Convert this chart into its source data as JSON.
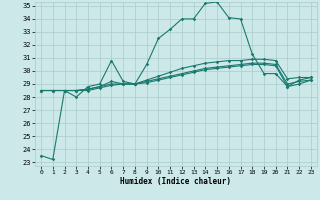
{
  "xlabel": "Humidex (Indice chaleur)",
  "background_color": "#cce8e8",
  "grid_color": "#aacccc",
  "line_color": "#1a7a6e",
  "x_min": 0,
  "x_max": 23,
  "y_min": 23,
  "y_max": 35,
  "x_ticks": [
    0,
    1,
    2,
    3,
    4,
    5,
    6,
    7,
    8,
    9,
    10,
    11,
    12,
    13,
    14,
    15,
    16,
    17,
    18,
    19,
    20,
    21,
    22,
    23
  ],
  "y_ticks": [
    23,
    24,
    25,
    26,
    27,
    28,
    29,
    30,
    31,
    32,
    33,
    34,
    35
  ],
  "line1": [
    23.5,
    23.2,
    28.5,
    28.0,
    28.8,
    29.0,
    30.8,
    29.2,
    29.0,
    30.5,
    32.5,
    33.2,
    34.0,
    34.0,
    35.2,
    35.3,
    34.1,
    34.0,
    31.3,
    29.8,
    29.8,
    28.8,
    29.3,
    29.5
  ],
  "line2": [
    28.5,
    28.5,
    28.5,
    28.5,
    28.6,
    28.8,
    29.2,
    29.0,
    29.0,
    29.3,
    29.6,
    29.9,
    30.2,
    30.4,
    30.6,
    30.7,
    30.8,
    30.8,
    30.9,
    30.9,
    30.8,
    29.4,
    29.5,
    29.5
  ],
  "line3": [
    28.5,
    28.5,
    28.5,
    28.5,
    28.5,
    28.7,
    28.9,
    29.0,
    29.0,
    29.2,
    29.4,
    29.6,
    29.8,
    30.0,
    30.2,
    30.3,
    30.4,
    30.5,
    30.6,
    30.6,
    30.5,
    29.0,
    29.2,
    29.3
  ],
  "line4": [
    28.5,
    28.5,
    28.5,
    28.5,
    28.6,
    28.8,
    29.0,
    29.0,
    29.0,
    29.1,
    29.3,
    29.5,
    29.7,
    29.9,
    30.1,
    30.2,
    30.3,
    30.4,
    30.5,
    30.5,
    30.4,
    28.8,
    29.0,
    29.3
  ]
}
